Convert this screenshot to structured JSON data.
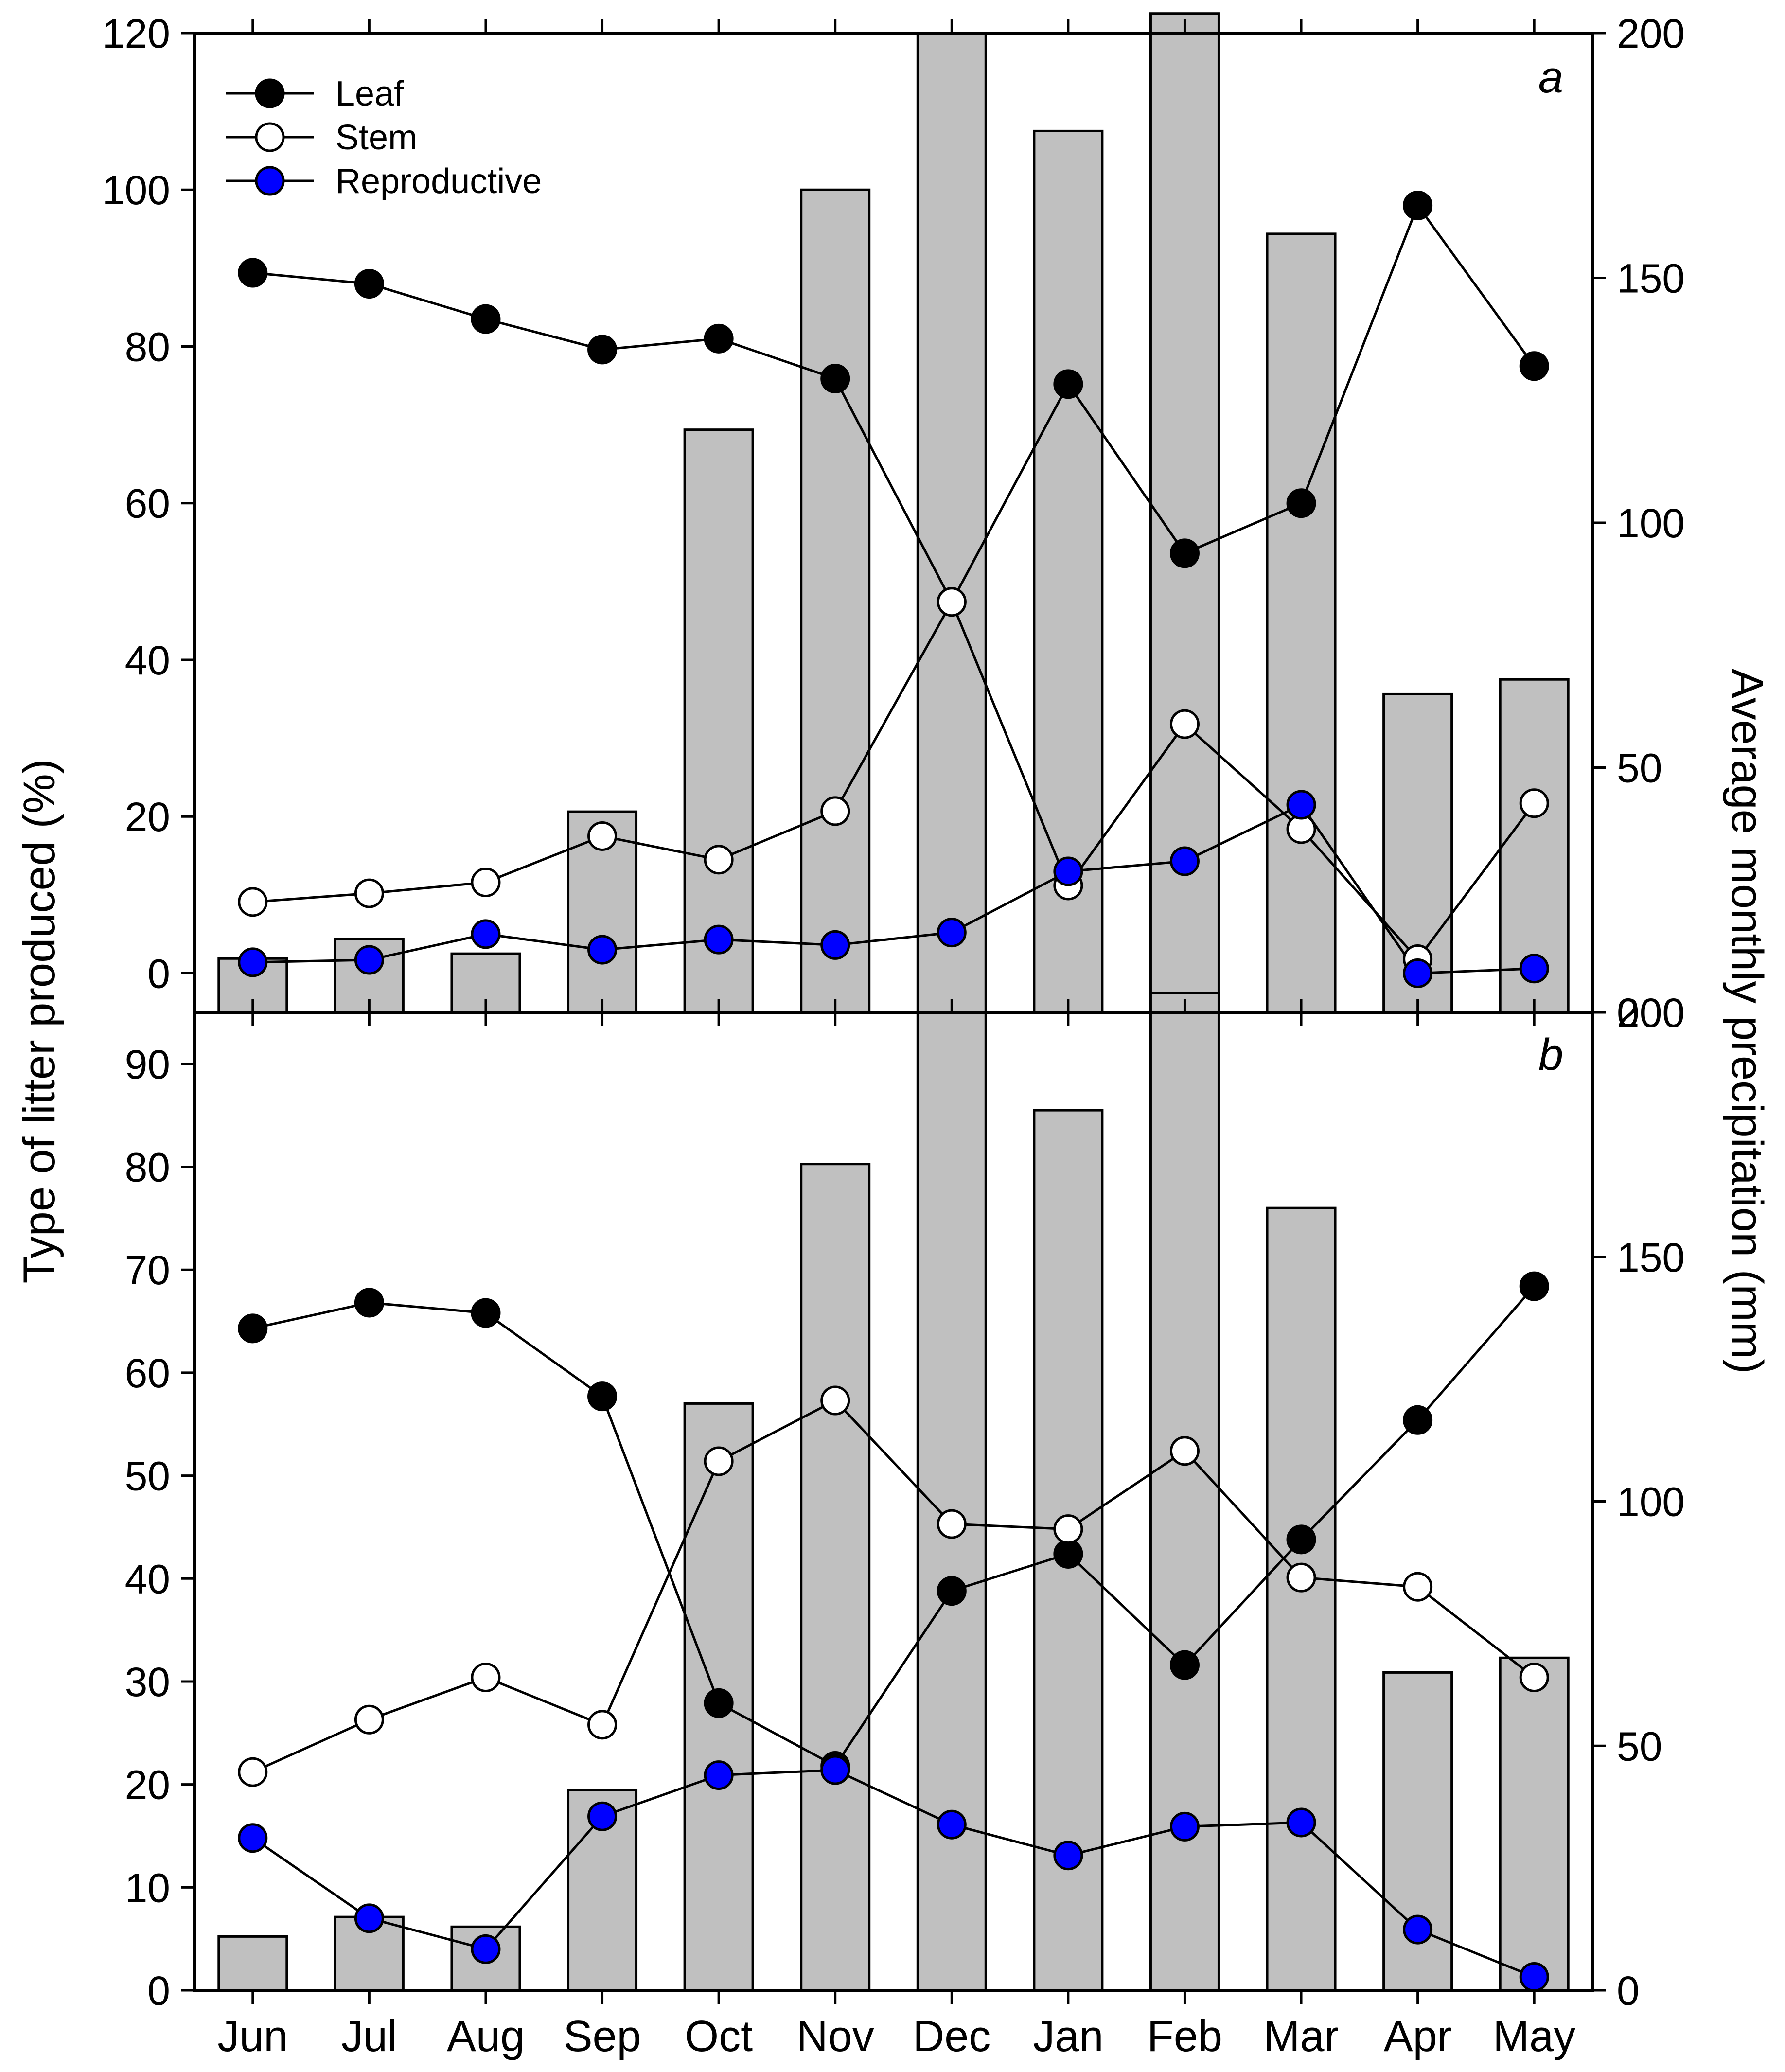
{
  "chart_data": [
    {
      "type": "bar+line",
      "panel_label": "a",
      "categories": [
        "Jun",
        "Jul",
        "Aug",
        "Sep",
        "Oct",
        "Nov",
        "Dec",
        "Jan",
        "Feb",
        "Mar",
        "Apr",
        "May"
      ],
      "ylabel": "Type of litter produced (%)",
      "y2label": "Average monthly precipitation (mm)",
      "ylim": [
        -5,
        120
      ],
      "yticks": [
        0,
        20,
        40,
        60,
        80,
        100,
        120
      ],
      "y2lim": [
        0,
        200
      ],
      "y2ticks": [
        0,
        50,
        100,
        150,
        200
      ],
      "bars": {
        "name": "Average monthly precipitation",
        "axis": "right",
        "color": "#c0c0c0",
        "values": [
          11,
          15,
          12,
          41,
          119,
          168,
          200,
          180,
          204,
          159,
          65,
          68
        ]
      },
      "series": [
        {
          "name": "Leaf",
          "marker_fill": "#000000",
          "values": [
            89.4,
            88.0,
            83.5,
            79.6,
            81.0,
            75.9,
            47.4,
            75.2,
            53.6,
            60.0,
            98.0,
            77.5
          ]
        },
        {
          "name": "Stem",
          "marker_fill": "#ffffff",
          "values": [
            9.1,
            10.2,
            11.6,
            17.5,
            14.5,
            20.7,
            47.4,
            11.2,
            31.8,
            18.4,
            1.8,
            21.7
          ]
        },
        {
          "name": "Reproductive",
          "marker_fill": "#0000ff",
          "values": [
            1.4,
            1.7,
            5.0,
            3.0,
            4.3,
            3.6,
            5.2,
            13.0,
            14.3,
            21.5,
            0.0,
            0.6
          ]
        }
      ],
      "legend": {
        "position": "top-left",
        "entries": [
          "Leaf",
          "Stem",
          "Reproductive"
        ]
      }
    },
    {
      "type": "bar+line",
      "panel_label": "b",
      "categories": [
        "Jun",
        "Jul",
        "Aug",
        "Sep",
        "Oct",
        "Nov",
        "Dec",
        "Jan",
        "Feb",
        "Mar",
        "Apr",
        "May"
      ],
      "ylim": [
        0,
        95
      ],
      "yticks": [
        0,
        10,
        20,
        30,
        40,
        50,
        60,
        70,
        80,
        90
      ],
      "y2lim": [
        0,
        200
      ],
      "y2ticks": [
        0,
        50,
        100,
        150,
        200
      ],
      "bars": {
        "name": "Average monthly precipitation",
        "axis": "right",
        "color": "#c0c0c0",
        "values": [
          11,
          15,
          13,
          41,
          120,
          169,
          200,
          180,
          204,
          160,
          65,
          68
        ]
      },
      "series": [
        {
          "name": "Leaf",
          "marker_fill": "#000000",
          "values": [
            64.3,
            66.8,
            65.8,
            57.7,
            27.9,
            21.8,
            38.8,
            42.4,
            31.6,
            43.8,
            55.4,
            68.4
          ]
        },
        {
          "name": "Stem",
          "marker_fill": "#ffffff",
          "values": [
            21.2,
            26.3,
            30.4,
            25.8,
            51.4,
            57.3,
            45.3,
            44.8,
            52.4,
            40.1,
            39.2,
            30.4
          ]
        },
        {
          "name": "Reproductive",
          "marker_fill": "#0000ff",
          "values": [
            14.8,
            7.0,
            4.0,
            16.9,
            20.9,
            21.4,
            16.1,
            13.1,
            15.9,
            16.3,
            5.9,
            1.3
          ]
        }
      ]
    }
  ],
  "axes_text": {
    "left_title": "Type of litter produced (%)",
    "right_title": "Average monthly precipitation (mm)",
    "panel_a": "a",
    "panel_b": "b",
    "legend_leaf": "Leaf",
    "legend_stem": "Stem",
    "legend_reproductive": "Reproductive"
  }
}
